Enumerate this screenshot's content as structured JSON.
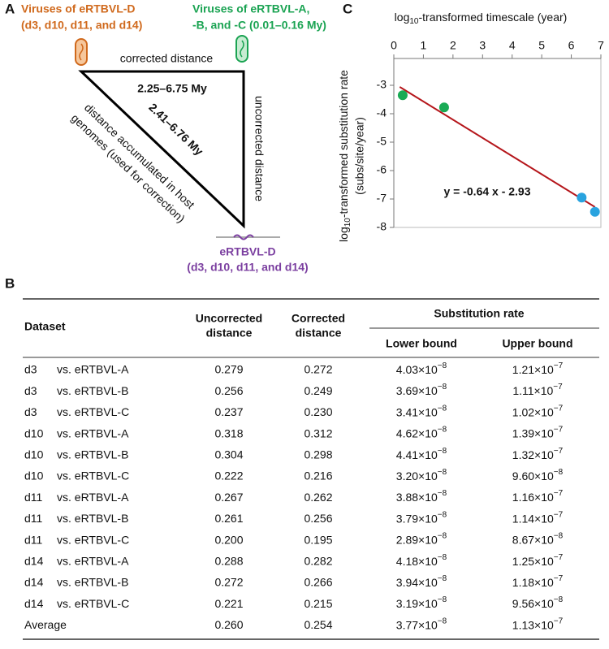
{
  "panel_a": {
    "label": "A",
    "virus_d": [
      "Viruses of eRTBVL-D",
      "(d3, d10, d11, and d14)"
    ],
    "virus_abc": [
      "Viruses of eRTBVL-A,",
      "-B, and -C (0.01–0.16 My)"
    ],
    "top_edge": "corrected distance",
    "top_time": "2.25–6.75 My",
    "hyp_time": "2.41–6.76 My",
    "right_edge": "uncorrected distance",
    "hyp_edge": [
      "distance accumulated in host",
      "genomes (used for correction)"
    ],
    "ertbvl_d": [
      "eRTBVL-D",
      "(d3, d10, d11, and d14)"
    ]
  },
  "chart_data": {
    "type": "scatter",
    "panel_label": "C",
    "x_label": [
      "log",
      "10",
      "-transformed timescale (year)"
    ],
    "y_label": [
      "log",
      "10",
      "-transformed substitution rate",
      "(subs/site/year)"
    ],
    "x": [
      0.3,
      1.7,
      6.35,
      6.8
    ],
    "values": [
      -3.35,
      -3.78,
      -6.95,
      -7.45
    ],
    "colors": [
      "#1aab55",
      "#1aab55",
      "#29a3df",
      "#29a3df"
    ],
    "xlim": [
      0,
      7
    ],
    "xticks": [
      0,
      1,
      2,
      3,
      4,
      5,
      6,
      7
    ],
    "ylim": [
      -8,
      -3
    ],
    "yticks": [
      -3,
      -4,
      -5,
      -6,
      -7,
      -8
    ],
    "trend_line": {
      "color": "#b5161b",
      "x": [
        0.2,
        6.8
      ],
      "values": [
        -3.058,
        -7.282
      ]
    },
    "annotation": "y = -0.64 x - 2.93"
  },
  "table": {
    "label": "B",
    "header": {
      "dataset": "Dataset",
      "uncorrected": [
        "Uncorrected",
        "distance"
      ],
      "corrected": [
        "Corrected",
        "distance"
      ],
      "rate": "Substitution rate",
      "lower": "Lower bound",
      "upper": "Upper bound"
    },
    "rows": [
      {
        "dataset": [
          "d3",
          "vs. eRTBVL-A"
        ],
        "uncorrected": "0.279",
        "corrected": "0.272",
        "lower": [
          "4.03×10",
          "−8"
        ],
        "upper": [
          "1.21×10",
          "−7"
        ]
      },
      {
        "dataset": [
          "d3",
          "vs. eRTBVL-B"
        ],
        "uncorrected": "0.256",
        "corrected": "0.249",
        "lower": [
          "3.69×10",
          "−8"
        ],
        "upper": [
          "1.11×10",
          "−7"
        ]
      },
      {
        "dataset": [
          "d3",
          "vs. eRTBVL-C"
        ],
        "uncorrected": "0.237",
        "corrected": "0.230",
        "lower": [
          "3.41×10",
          "−8"
        ],
        "upper": [
          "1.02×10",
          "−7"
        ]
      },
      {
        "dataset": [
          "d10",
          "vs. eRTBVL-A"
        ],
        "uncorrected": "0.318",
        "corrected": "0.312",
        "lower": [
          "4.62×10",
          "−8"
        ],
        "upper": [
          "1.39×10",
          "−7"
        ]
      },
      {
        "dataset": [
          "d10",
          "vs. eRTBVL-B"
        ],
        "uncorrected": "0.304",
        "corrected": "0.298",
        "lower": [
          "4.41×10",
          "−8"
        ],
        "upper": [
          "1.32×10",
          "−7"
        ]
      },
      {
        "dataset": [
          "d10",
          "vs. eRTBVL-C"
        ],
        "uncorrected": "0.222",
        "corrected": "0.216",
        "lower": [
          "3.20×10",
          "−8"
        ],
        "upper": [
          "9.60×10",
          "−8"
        ]
      },
      {
        "dataset": [
          "d11",
          "vs. eRTBVL-A"
        ],
        "uncorrected": "0.267",
        "corrected": "0.262",
        "lower": [
          "3.88×10",
          "−8"
        ],
        "upper": [
          "1.16×10",
          "−7"
        ]
      },
      {
        "dataset": [
          "d11",
          "vs. eRTBVL-B"
        ],
        "uncorrected": "0.261",
        "corrected": "0.256",
        "lower": [
          "3.79×10",
          "−8"
        ],
        "upper": [
          "1.14×10",
          "−7"
        ]
      },
      {
        "dataset": [
          "d11",
          "vs. eRTBVL-C"
        ],
        "uncorrected": "0.200",
        "corrected": "0.195",
        "lower": [
          "2.89×10",
          "−8"
        ],
        "upper": [
          "8.67×10",
          "−8"
        ]
      },
      {
        "dataset": [
          "d14",
          "vs. eRTBVL-A"
        ],
        "uncorrected": "0.288",
        "corrected": "0.282",
        "lower": [
          "4.18×10",
          "−8"
        ],
        "upper": [
          "1.25×10",
          "−7"
        ]
      },
      {
        "dataset": [
          "d14",
          "vs. eRTBVL-B"
        ],
        "uncorrected": "0.272",
        "corrected": "0.266",
        "lower": [
          "3.94×10",
          "−8"
        ],
        "upper": [
          "1.18×10",
          "−7"
        ]
      },
      {
        "dataset": [
          "d14",
          "vs. eRTBVL-C"
        ],
        "uncorrected": "0.221",
        "corrected": "0.215",
        "lower": [
          "3.19×10",
          "−8"
        ],
        "upper": [
          "9.56×10",
          "−8"
        ]
      },
      {
        "dataset": [
          "Average"
        ],
        "uncorrected": "0.260",
        "corrected": "0.254",
        "lower": [
          "3.77×10",
          "−8"
        ],
        "upper": [
          "1.13×10",
          "−7"
        ]
      }
    ]
  }
}
